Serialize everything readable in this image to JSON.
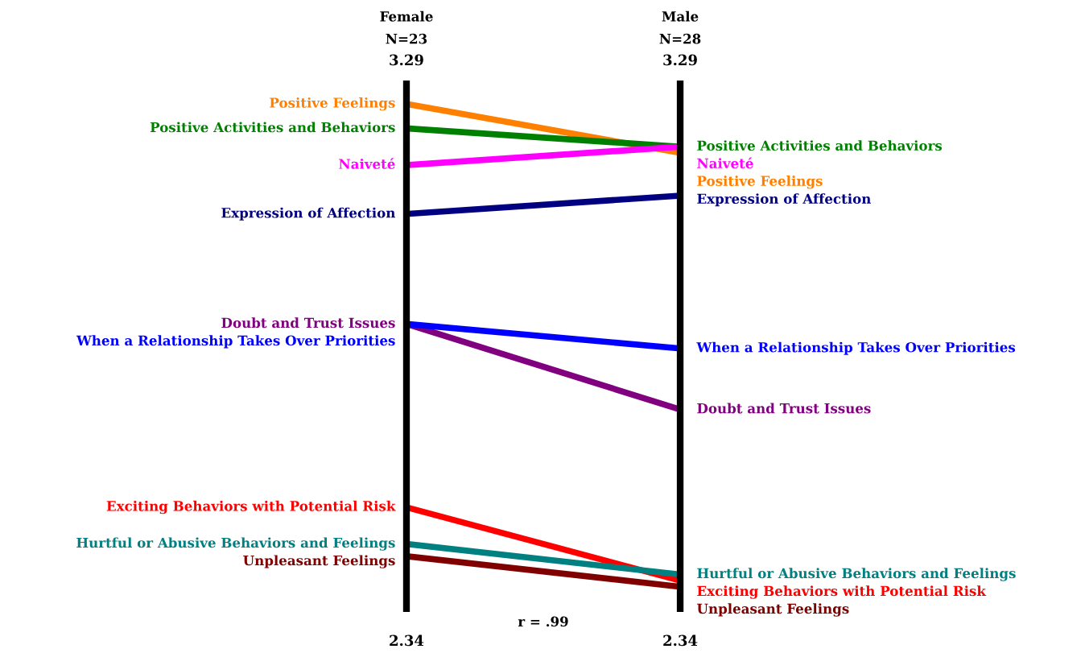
{
  "chart_data": {
    "type": "line",
    "categories": [
      "Female",
      "Male"
    ],
    "ylim": [
      2.34,
      3.29
    ],
    "yticks": [
      2.34,
      3.29
    ],
    "y2lim": [
      2.34,
      3.29
    ],
    "y2ticks": [
      2.34,
      3.29
    ],
    "annotations": [
      "N=23",
      "N=28",
      "r = .99"
    ],
    "legend": false,
    "grid": "x",
    "series": [
      {
        "name": "Positive Feelings",
        "color": "#ff8000",
        "values": [
          3.22,
          3.14
        ]
      },
      {
        "name": "Positive Activities and Behaviors",
        "color": "#008000",
        "values": [
          3.18,
          3.15
        ]
      },
      {
        "name": "Naiveté",
        "color": "#ff00ff",
        "values": [
          3.12,
          3.15
        ]
      },
      {
        "name": "Expression of Affection",
        "color": "#000080",
        "values": [
          3.04,
          3.07
        ]
      },
      {
        "name": "Doubt and Trust Issues",
        "color": "#800080",
        "values": [
          2.86,
          2.72
        ]
      },
      {
        "name": "When a Relationship Takes Over Priorities",
        "color": "#0000ff",
        "values": [
          2.86,
          2.82
        ]
      },
      {
        "name": "Exciting Behaviors with Potential Risk",
        "color": "#ff0000",
        "values": [
          2.56,
          2.44
        ]
      },
      {
        "name": "Hurtful or Abusive Behaviors and Feelings",
        "color": "#008080",
        "values": [
          2.5,
          2.45
        ]
      },
      {
        "name": "Unpleasant Feelings",
        "color": "#800000",
        "values": [
          2.48,
          2.43
        ]
      }
    ]
  }
}
